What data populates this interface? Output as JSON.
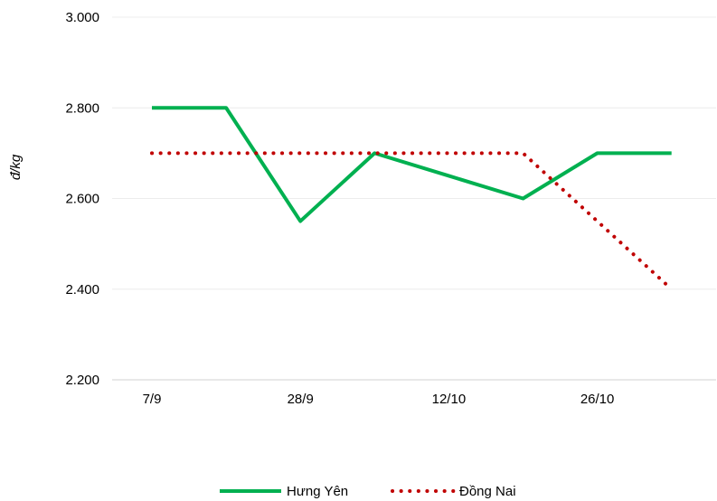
{
  "chart_data": {
    "type": "line",
    "title": "",
    "xlabel": "",
    "ylabel": "đ/kg",
    "categories": [
      "7/9",
      "",
      "28/9",
      "",
      "12/10",
      "",
      "26/10",
      ""
    ],
    "x_tick_labels": [
      "7/9",
      "28/9",
      "12/10",
      "26/10"
    ],
    "y_tick_labels": [
      "2.200",
      "2.400",
      "2.600",
      "2.800",
      "3.000"
    ],
    "ylim": [
      2200,
      3000
    ],
    "grid": "horizontal",
    "legend_position": "bottom",
    "series": [
      {
        "name": "Hưng Yên",
        "color": "#00b050",
        "style": "solid",
        "values": [
          2800,
          2800,
          2550,
          2700,
          2650,
          2600,
          2700,
          2700
        ]
      },
      {
        "name": "Đồng Nai",
        "color": "#c00000",
        "style": "dotted",
        "values": [
          2700,
          2700,
          2700,
          2700,
          2700,
          2700,
          2550,
          2400
        ]
      }
    ]
  }
}
